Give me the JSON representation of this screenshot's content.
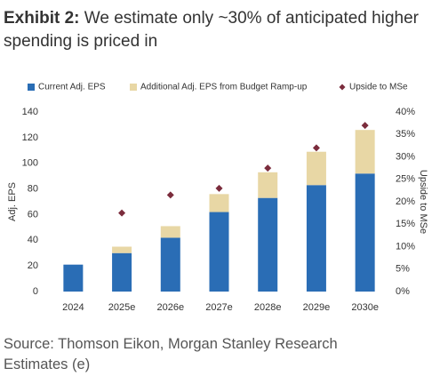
{
  "chart_data": {
    "type": "bar",
    "title_label": "Exhibit 2:",
    "title": "We estimate only ~30% of anticipated higher spending is priced in",
    "source": "Source: Thomson Eikon, Morgan Stanley Research Estimates (e)",
    "ylabel": "Adj. EPS",
    "y2label": "Upside to MSe",
    "categories": [
      "2024",
      "2025e",
      "2026e",
      "2027e",
      "2028e",
      "2029e",
      "2030e"
    ],
    "series": [
      {
        "name": "Current Adj. EPS",
        "color": "#2a6db5",
        "values": [
          21,
          30,
          42,
          62,
          73,
          83,
          92
        ]
      },
      {
        "name": "Additional Adj. EPS from Budget Ramp-up",
        "color": "#e8d7a5",
        "values": [
          null,
          5,
          9,
          14,
          20,
          26,
          34
        ]
      },
      {
        "name": "Upside to MSe",
        "color": "#7b2c3c",
        "type": "scatter",
        "axis": "y2",
        "values": [
          null,
          17.5,
          21.5,
          23,
          27.5,
          32,
          37
        ]
      }
    ],
    "ylim": [
      0,
      140
    ],
    "yticks": [
      0,
      20,
      40,
      60,
      80,
      100,
      120,
      140
    ],
    "y2lim": [
      0,
      40
    ],
    "y2ticks": [
      {
        "value": 0,
        "label": "0%"
      },
      {
        "value": 5,
        "label": "5%"
      },
      {
        "value": 10,
        "label": "10%"
      },
      {
        "value": 15,
        "label": "15%"
      },
      {
        "value": 20,
        "label": "20%"
      },
      {
        "value": 25,
        "label": "25%"
      },
      {
        "value": 30,
        "label": "30%"
      },
      {
        "value": 35,
        "label": "35%"
      },
      {
        "value": 40,
        "label": "40%"
      }
    ]
  }
}
